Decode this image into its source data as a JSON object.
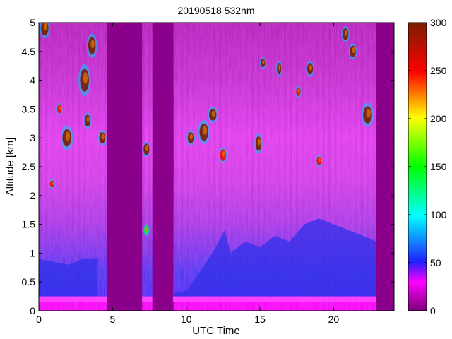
{
  "chart_data": {
    "type": "heatmap",
    "title": "20190518 532nm",
    "xlabel": "UTC Time",
    "ylabel": "Altitude [km]",
    "xlim": [
      0,
      24.1
    ],
    "ylim": [
      0,
      5
    ],
    "x_ticks": [
      0,
      5,
      10,
      15,
      20
    ],
    "y_ticks": [
      0,
      0.5,
      1,
      1.5,
      2,
      2.5,
      3,
      3.5,
      4,
      4.5,
      5
    ],
    "colorbar": {
      "range": [
        0,
        300
      ],
      "ticks": [
        0,
        50,
        100,
        150,
        200,
        250,
        300
      ],
      "colors": [
        "#7a007a",
        "#ff00ff",
        "#2020ff",
        "#00ffff",
        "#00ff00",
        "#ffff00",
        "#ff0000",
        "#7a1e00"
      ]
    },
    "no_data_intervals": [
      [
        4.6,
        7.0
      ],
      [
        7.7,
        9.1
      ]
    ],
    "data_extent_hours": [
      0,
      22.9
    ],
    "background_color": "#8a008a",
    "boundary_layer": {
      "top_km": [
        [
          0,
          0.9
        ],
        [
          1,
          0.85
        ],
        [
          2,
          0.8
        ],
        [
          3,
          0.9
        ],
        [
          4,
          0.9
        ],
        [
          9.2,
          0.3
        ],
        [
          10,
          0.35
        ],
        [
          11,
          0.7
        ],
        [
          12,
          1.1
        ],
        [
          12.6,
          1.4
        ],
        [
          13,
          1.0
        ],
        [
          14,
          1.2
        ],
        [
          15,
          1.1
        ],
        [
          16,
          1.3
        ],
        [
          17,
          1.2
        ],
        [
          18,
          1.5
        ],
        [
          19,
          1.6
        ],
        [
          20,
          1.5
        ],
        [
          21,
          1.4
        ],
        [
          22,
          1.3
        ],
        [
          22.9,
          1.2
        ]
      ]
    },
    "cloud_features": [
      {
        "t": 0.4,
        "alt": 4.9,
        "w": 0.5,
        "h": 0.25,
        "intensity": 300
      },
      {
        "t": 0.9,
        "alt": 2.2,
        "w": 0.3,
        "h": 0.12,
        "intensity": 250
      },
      {
        "t": 1.4,
        "alt": 3.5,
        "w": 0.3,
        "h": 0.15,
        "intensity": 260
      },
      {
        "t": 1.9,
        "alt": 3.0,
        "w": 0.6,
        "h": 0.3,
        "intensity": 300
      },
      {
        "t": 3.1,
        "alt": 4.0,
        "w": 0.6,
        "h": 0.4,
        "intensity": 300
      },
      {
        "t": 3.3,
        "alt": 3.3,
        "w": 0.4,
        "h": 0.2,
        "intensity": 280
      },
      {
        "t": 3.6,
        "alt": 4.6,
        "w": 0.5,
        "h": 0.3,
        "intensity": 280
      },
      {
        "t": 4.3,
        "alt": 3.0,
        "w": 0.4,
        "h": 0.2,
        "intensity": 300
      },
      {
        "t": 7.3,
        "alt": 2.8,
        "w": 0.4,
        "h": 0.2,
        "intensity": 300
      },
      {
        "t": 7.3,
        "alt": 1.4,
        "w": 0.3,
        "h": 0.15,
        "intensity": 150
      },
      {
        "t": 10.3,
        "alt": 3.0,
        "w": 0.4,
        "h": 0.2,
        "intensity": 280
      },
      {
        "t": 11.2,
        "alt": 3.1,
        "w": 0.6,
        "h": 0.3,
        "intensity": 300
      },
      {
        "t": 11.8,
        "alt": 3.4,
        "w": 0.5,
        "h": 0.2,
        "intensity": 280
      },
      {
        "t": 12.5,
        "alt": 2.7,
        "w": 0.4,
        "h": 0.2,
        "intensity": 250
      },
      {
        "t": 14.9,
        "alt": 2.9,
        "w": 0.4,
        "h": 0.25,
        "intensity": 300
      },
      {
        "t": 15.2,
        "alt": 4.3,
        "w": 0.3,
        "h": 0.15,
        "intensity": 280
      },
      {
        "t": 16.3,
        "alt": 4.2,
        "w": 0.3,
        "h": 0.2,
        "intensity": 280
      },
      {
        "t": 17.6,
        "alt": 3.8,
        "w": 0.3,
        "h": 0.15,
        "intensity": 250
      },
      {
        "t": 18.4,
        "alt": 4.2,
        "w": 0.4,
        "h": 0.2,
        "intensity": 300
      },
      {
        "t": 19.0,
        "alt": 2.6,
        "w": 0.3,
        "h": 0.15,
        "intensity": 250
      },
      {
        "t": 20.8,
        "alt": 4.8,
        "w": 0.4,
        "h": 0.2,
        "intensity": 300
      },
      {
        "t": 21.3,
        "alt": 4.5,
        "w": 0.4,
        "h": 0.2,
        "intensity": 300
      },
      {
        "t": 22.3,
        "alt": 3.4,
        "w": 0.6,
        "h": 0.3,
        "intensity": 300
      }
    ]
  }
}
